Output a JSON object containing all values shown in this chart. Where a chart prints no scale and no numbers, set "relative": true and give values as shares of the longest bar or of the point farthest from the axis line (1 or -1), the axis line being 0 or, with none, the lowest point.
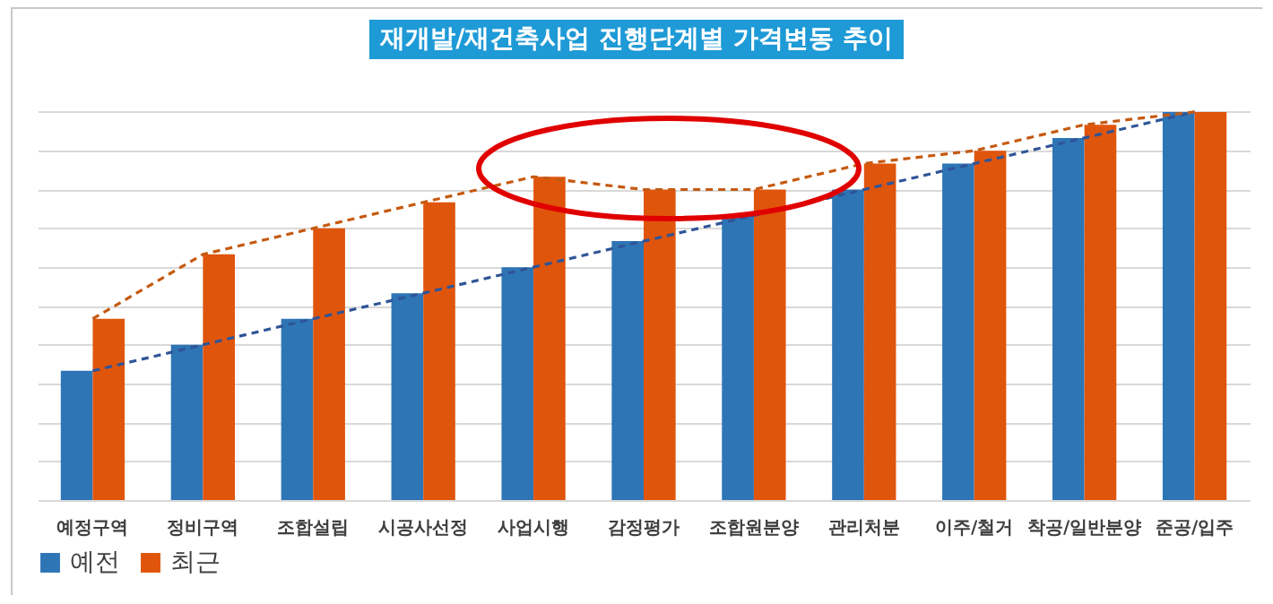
{
  "chart_data": {
    "type": "bar",
    "title": "재개발/재건축사업 진행단계별 가격변동 추이",
    "relative": true,
    "grid": "y",
    "legend": "bottom",
    "categories": [
      "예정구역",
      "정비구역",
      "조합설립",
      "시공사선정",
      "사업시행",
      "감정평가",
      "조합원분양",
      "관리처분",
      "이주/철거",
      "착공/일반분양",
      "준공/입주"
    ],
    "series": [
      {
        "name": "예전",
        "color": "#2e75b6",
        "values": [
          0.333,
          0.4,
          0.467,
          0.533,
          0.6,
          0.667,
          0.733,
          0.8,
          0.867,
          0.933,
          1
        ]
      },
      {
        "name": "최근",
        "color": "#e0550c",
        "values": [
          0.467,
          0.633,
          0.7,
          0.767,
          0.833,
          0.8,
          0.8,
          0.867,
          0.9,
          0.967,
          1
        ]
      },
      {
        "type": "line",
        "color": "#2f5597",
        "line_style": "dashed",
        "values": [
          0.333,
          0.4,
          0.467,
          0.533,
          0.6,
          0.667,
          0.733,
          0.8,
          0.867,
          0.933,
          1
        ]
      },
      {
        "type": "line",
        "color": "#c55a11",
        "line_style": "dashed",
        "values": [
          0.467,
          0.633,
          0.7,
          0.767,
          0.833,
          0.8,
          0.8,
          0.867,
          0.9,
          0.967,
          1
        ]
      }
    ]
  }
}
